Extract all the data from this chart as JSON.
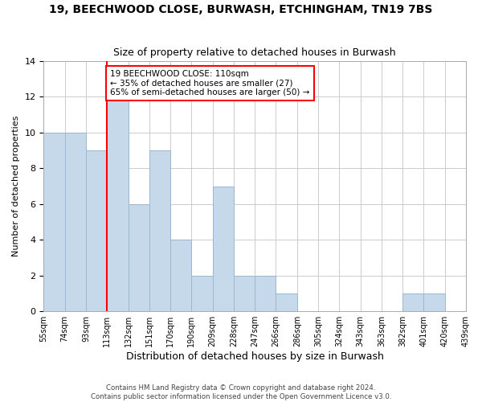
{
  "title": "19, BEECHWOOD CLOSE, BURWASH, ETCHINGHAM, TN19 7BS",
  "subtitle": "Size of property relative to detached houses in Burwash",
  "xlabel": "Distribution of detached houses by size in Burwash",
  "ylabel": "Number of detached properties",
  "bar_color": "#c5d9ea",
  "bar_edge_color": "#9bb8cf",
  "vline_color": "red",
  "annotation_text": "19 BEECHWOOD CLOSE: 110sqm\n← 35% of detached houses are smaller (27)\n65% of semi-detached houses are larger (50) →",
  "annotation_box_color": "white",
  "annotation_box_edge_color": "red",
  "tick_labels": [
    "55sqm",
    "74sqm",
    "93sqm",
    "113sqm",
    "132sqm",
    "151sqm",
    "170sqm",
    "190sqm",
    "209sqm",
    "228sqm",
    "247sqm",
    "266sqm",
    "286sqm",
    "305sqm",
    "324sqm",
    "343sqm",
    "363sqm",
    "382sqm",
    "401sqm",
    "420sqm",
    "439sqm"
  ],
  "values": [
    10,
    10,
    9,
    12,
    6,
    9,
    4,
    2,
    7,
    2,
    2,
    1,
    0,
    0,
    0,
    0,
    0,
    1,
    1,
    0
  ],
  "ylim": [
    0,
    14
  ],
  "yticks": [
    0,
    2,
    4,
    6,
    8,
    10,
    12,
    14
  ],
  "footer_line1": "Contains HM Land Registry data © Crown copyright and database right 2024.",
  "footer_line2": "Contains public sector information licensed under the Open Government Licence v3.0.",
  "background_color": "#ffffff",
  "grid_color": "#cccccc",
  "vline_bar_index": 3
}
